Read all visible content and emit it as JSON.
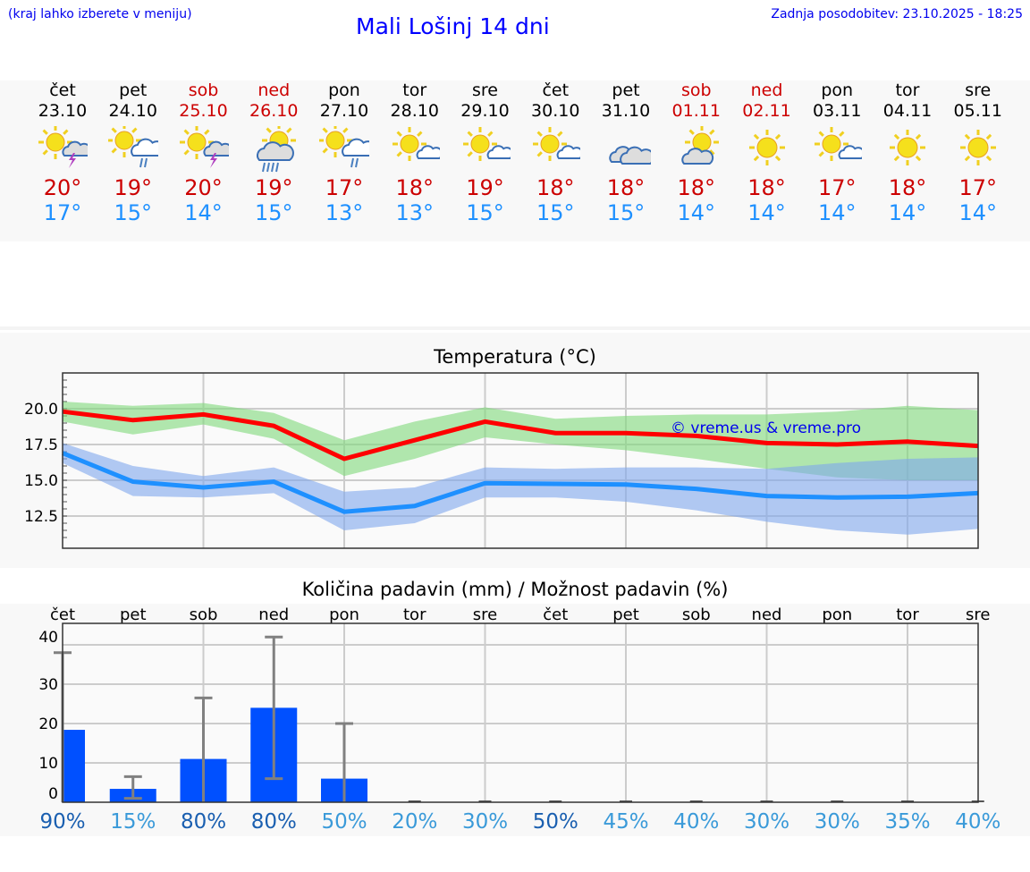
{
  "header": {
    "hint": "(kraj lahko izberete v meniju)",
    "title": "Mali Lošinj 14 dni",
    "updated": "Zadnja posodobitev: 23.10.2025 - 18:25"
  },
  "days": [
    {
      "name": "čet",
      "date": "23.10",
      "weekend": false,
      "icon": "sun-storm",
      "max": "20°",
      "min": "17°"
    },
    {
      "name": "pet",
      "date": "24.10",
      "weekend": false,
      "icon": "sun-rain",
      "max": "19°",
      "min": "15°"
    },
    {
      "name": "sob",
      "date": "25.10",
      "weekend": true,
      "icon": "sun-storm",
      "max": "20°",
      "min": "14°"
    },
    {
      "name": "ned",
      "date": "26.10",
      "weekend": true,
      "icon": "cloud-rain-sun",
      "max": "19°",
      "min": "15°"
    },
    {
      "name": "pon",
      "date": "27.10",
      "weekend": false,
      "icon": "sun-rain",
      "max": "17°",
      "min": "13°"
    },
    {
      "name": "tor",
      "date": "28.10",
      "weekend": false,
      "icon": "sun-small-cloud",
      "max": "18°",
      "min": "13°"
    },
    {
      "name": "sre",
      "date": "29.10",
      "weekend": false,
      "icon": "sun-small-cloud",
      "max": "19°",
      "min": "15°"
    },
    {
      "name": "čet",
      "date": "30.10",
      "weekend": false,
      "icon": "sun-small-cloud",
      "max": "18°",
      "min": "15°"
    },
    {
      "name": "pet",
      "date": "31.10",
      "weekend": false,
      "icon": "clouds",
      "max": "18°",
      "min": "15°"
    },
    {
      "name": "sob",
      "date": "01.11",
      "weekend": true,
      "icon": "cloud-sun",
      "max": "18°",
      "min": "14°"
    },
    {
      "name": "ned",
      "date": "02.11",
      "weekend": true,
      "icon": "sun",
      "max": "18°",
      "min": "14°"
    },
    {
      "name": "pon",
      "date": "03.11",
      "weekend": false,
      "icon": "sun-small-cloud",
      "max": "17°",
      "min": "14°"
    },
    {
      "name": "tor",
      "date": "04.11",
      "weekend": false,
      "icon": "sun",
      "max": "18°",
      "min": "14°"
    },
    {
      "name": "sre",
      "date": "05.11",
      "weekend": false,
      "icon": "sun",
      "max": "17°",
      "min": "14°"
    }
  ],
  "chart_data": [
    {
      "type": "line",
      "title": "Temperatura (°C)",
      "watermark": "© vreme.us & vreme.pro",
      "ylim": [
        10.25,
        22.5
      ],
      "yticks": [
        "20.0",
        "17.5",
        "15.0",
        "12.5"
      ],
      "ytick_values": [
        20,
        17.5,
        15,
        12.5
      ],
      "x": [
        0,
        1,
        2,
        3,
        4,
        5,
        6,
        7,
        8,
        9,
        10,
        11,
        12,
        13
      ],
      "series": [
        {
          "name": "max",
          "color": "#ff0000",
          "values": [
            19.8,
            19.2,
            19.6,
            18.8,
            16.5,
            17.8,
            19.1,
            18.3,
            18.3,
            18.1,
            17.6,
            17.5,
            17.7,
            17.4
          ],
          "band_upper": [
            20.5,
            20.2,
            20.4,
            19.7,
            17.8,
            19.1,
            20.1,
            19.3,
            19.5,
            19.6,
            19.6,
            19.8,
            20.2,
            19.9
          ],
          "band_lower": [
            19.1,
            18.2,
            18.9,
            17.9,
            15.3,
            16.5,
            18.0,
            17.5,
            17.1,
            16.5,
            15.8,
            15.2,
            15.0,
            15.0
          ],
          "band_color": "#7fd87a"
        },
        {
          "name": "min",
          "color": "#1e90ff",
          "values": [
            16.9,
            14.9,
            14.5,
            14.9,
            12.8,
            13.2,
            14.8,
            14.75,
            14.7,
            14.4,
            13.9,
            13.8,
            13.85,
            14.1
          ],
          "band_upper": [
            17.6,
            16.0,
            15.3,
            15.9,
            14.2,
            14.5,
            15.9,
            15.8,
            15.9,
            15.9,
            15.8,
            16.2,
            16.5,
            16.6
          ],
          "band_lower": [
            16.2,
            13.9,
            13.8,
            14.1,
            11.5,
            12.0,
            13.8,
            13.8,
            13.5,
            12.9,
            12.1,
            11.5,
            11.2,
            11.6
          ],
          "band_color": "#7fa6ec"
        }
      ]
    },
    {
      "type": "bar",
      "title": "Količina padavin (mm) / Možnost padavin (%)",
      "categories": [
        "čet",
        "pet",
        "sob",
        "ned",
        "pon",
        "tor",
        "sre",
        "čet",
        "pet",
        "sob",
        "ned",
        "pon",
        "tor",
        "sre"
      ],
      "ylim": [
        0,
        42
      ],
      "yticks": [
        "40",
        "30",
        "20",
        "10",
        "0"
      ],
      "ytick_values": [
        40,
        30,
        20,
        10,
        0
      ],
      "values": [
        18.4,
        3.4,
        11,
        24,
        6,
        0,
        0,
        0,
        0,
        0,
        0,
        0,
        0,
        0
      ],
      "err_low": [
        0,
        1,
        0,
        6,
        0,
        0,
        0,
        0,
        0,
        0,
        0,
        0,
        0,
        0
      ],
      "err_high": [
        38,
        6.5,
        26.5,
        42,
        20,
        0,
        0,
        0,
        0,
        0,
        0,
        0,
        0,
        0
      ],
      "bar_color": "#0050ff",
      "probability": [
        "90%",
        "15%",
        "80%",
        "80%",
        "50%",
        "20%",
        "30%",
        "50%",
        "45%",
        "40%",
        "30%",
        "30%",
        "35%",
        "40%"
      ],
      "probability_colors": [
        "#1a5fb0",
        "#3a9ad9",
        "#1a5fb0",
        "#1a5fb0",
        "#3a9ad9",
        "#3a9ad9",
        "#3a9ad9",
        "#1a5fb0",
        "#3a9ad9",
        "#3a9ad9",
        "#3a9ad9",
        "#3a9ad9",
        "#3a9ad9",
        "#3a9ad9"
      ]
    }
  ]
}
